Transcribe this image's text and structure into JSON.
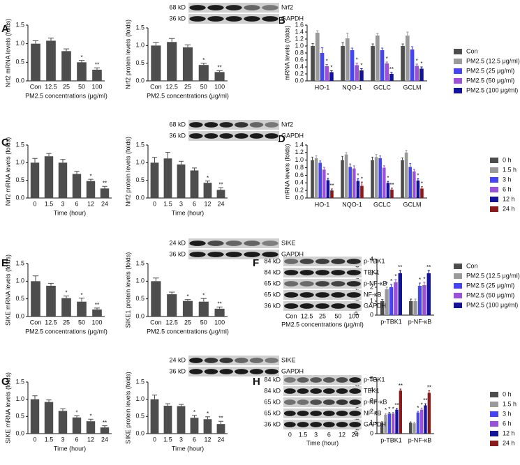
{
  "panel_letters": [
    "A",
    "B",
    "C",
    "D",
    "E",
    "F",
    "G",
    "H"
  ],
  "blots": [
    {
      "kd": [
        "68 kD",
        "36 kD"
      ],
      "names": [
        "Nrf2",
        "GAPDH"
      ]
    },
    {
      "kd": [
        "68 kD",
        "36 kD"
      ],
      "names": [
        "Nrf2",
        "GAPDH"
      ]
    },
    {
      "kd": [
        "24 kD",
        "36 kD"
      ],
      "names": [
        "SIKE",
        "GAPDH"
      ]
    },
    {
      "kd": [
        "84 kD",
        "84 kD",
        "65 kD",
        "65 kD",
        "36 kD"
      ],
      "names": [
        "p-TBK1",
        "TBK1",
        "p-NF-κB",
        "NF-κB",
        "GAPDH"
      ],
      "lanes": [
        "Con",
        "12.5",
        "25",
        "50",
        "100"
      ],
      "xlabel": "PM2.5 concentrations (μg/ml)"
    },
    {
      "kd": [
        "24 kD",
        "36 kD"
      ],
      "names": [
        "SIKE",
        "GAPDH"
      ]
    },
    {
      "kd": [
        "84 kD",
        "84 kD",
        "65 kD",
        "65 kD",
        "36 kD"
      ],
      "names": [
        "p-TBK1",
        "TBK1",
        "p-NF-κB",
        "NF-κB",
        "GAPDH"
      ],
      "lanes": [
        "0",
        "1.5",
        "3",
        "6",
        "12",
        "24"
      ],
      "xlabel": "Time (hour)"
    }
  ],
  "chart_data": [
    {
      "type": "bar",
      "ylabel": "Nrf2 mRNA levels (folds)",
      "xlabel": "PM2.5 concentrations (μg/ml)",
      "color": "#4d4d4d",
      "categories": [
        "Con",
        "12.5",
        "25",
        "50",
        "100"
      ],
      "values": [
        1.0,
        1.08,
        0.8,
        0.5,
        0.3
      ],
      "errors": [
        0.08,
        0.07,
        0.06,
        0.05,
        0.05
      ],
      "annotations": [
        null,
        null,
        null,
        "*",
        "**"
      ],
      "ylim": [
        0,
        1.5
      ],
      "yticks": [
        {
          "value": 0,
          "label": "0.0"
        },
        {
          "value": 0.5,
          "label": "0.5"
        },
        {
          "value": 1,
          "label": "1.0"
        },
        {
          "value": 1.5,
          "label": "1.5"
        }
      ]
    },
    {
      "type": "bar",
      "ylabel": "Nrf2 protein levels (folds)",
      "xlabel": "PM2.5 concentrations (μg/ml)",
      "color": "#4d4d4d",
      "categories": [
        "Con",
        "12.5",
        "25",
        "50",
        "100"
      ],
      "values": [
        1.0,
        1.1,
        0.95,
        0.45,
        0.25
      ],
      "errors": [
        0.09,
        0.1,
        0.07,
        0.05,
        0.04
      ],
      "annotations": [
        null,
        null,
        null,
        "*",
        "**"
      ],
      "ylim": [
        0,
        1.5
      ],
      "yticks": [
        {
          "value": 0,
          "label": "0.0"
        },
        {
          "value": 0.5,
          "label": "0.5"
        },
        {
          "value": 1,
          "label": "1.0"
        },
        {
          "value": 1.5,
          "label": "1.5"
        }
      ]
    },
    {
      "type": "grouped-bar",
      "ylabel": "mRNA levels (folds)",
      "legend": "right",
      "categories": [
        "HO-1",
        "NQO-1",
        "GCLC",
        "GCLM"
      ],
      "series": [
        {
          "name": "Con",
          "color": "#4d4d4d",
          "values": [
            1.0,
            1.0,
            1.0,
            1.0
          ],
          "errors": [
            0.07,
            0.1,
            0.06,
            0.06
          ],
          "annotations": [
            null,
            null,
            null,
            null
          ]
        },
        {
          "name": "PM2.5 (12.5 μg/ml)",
          "color": "#9a9a9a",
          "values": [
            1.38,
            1.22,
            1.3,
            1.3
          ],
          "errors": [
            0.06,
            0.15,
            0.06,
            0.1
          ],
          "annotations": [
            null,
            null,
            null,
            null
          ]
        },
        {
          "name": "PM2.5 (25 μg/ml)",
          "color": "#4646f0",
          "values": [
            0.8,
            0.88,
            0.88,
            0.9
          ],
          "errors": [
            0.15,
            0.06,
            0.06,
            0.08
          ],
          "annotations": [
            null,
            null,
            null,
            null
          ]
        },
        {
          "name": "PM2.5 (50 μg/ml)",
          "color": "#9b52d6",
          "values": [
            0.42,
            0.45,
            0.5,
            0.43
          ],
          "errors": [
            0.05,
            0.06,
            0.04,
            0.05
          ],
          "annotations": [
            "*",
            "*",
            "*",
            "*"
          ]
        },
        {
          "name": "PM2.5 (100 μg/ml)",
          "color": "#14149a",
          "values": [
            0.25,
            0.3,
            0.2,
            0.35
          ],
          "errors": [
            0.04,
            0.05,
            0.04,
            0.05
          ],
          "annotations": [
            "*",
            "*",
            "**",
            "*"
          ]
        }
      ],
      "ylim": [
        0,
        1.6
      ],
      "yticks": [
        {
          "value": 0,
          "label": "0.0"
        },
        {
          "value": 0.2,
          "label": "0.2"
        },
        {
          "value": 0.4,
          "label": "0.4"
        },
        {
          "value": 0.6,
          "label": "0.6"
        },
        {
          "value": 0.8,
          "label": "0.8"
        },
        {
          "value": 1,
          "label": "1.0"
        },
        {
          "value": 1.2,
          "label": "1.2"
        },
        {
          "value": 1.4,
          "label": "1.4"
        },
        {
          "value": 1.6,
          "label": "1.6"
        }
      ]
    },
    {
      "type": "bar",
      "ylabel": "Nrf2 mRNA levels (folds)",
      "xlabel": "Time (hour)",
      "color": "#4d4d4d",
      "categories": [
        "0",
        "1.5",
        "3",
        "6",
        "12",
        "24"
      ],
      "values": [
        1.0,
        1.18,
        1.0,
        0.68,
        0.48,
        0.27
      ],
      "errors": [
        0.12,
        0.08,
        0.09,
        0.08,
        0.05,
        0.06
      ],
      "annotations": [
        null,
        null,
        null,
        null,
        "*",
        "**"
      ],
      "ylim": [
        0,
        1.5
      ],
      "yticks": [
        {
          "value": 0,
          "label": "0.0"
        },
        {
          "value": 0.5,
          "label": "0.5"
        },
        {
          "value": 1,
          "label": "1.0"
        },
        {
          "value": 1.5,
          "label": "1.5"
        }
      ]
    },
    {
      "type": "bar",
      "ylabel": "Nrf2 protein levels (folds)",
      "xlabel": "Time (hour)",
      "color": "#4d4d4d",
      "categories": [
        "0",
        "1.5",
        "3",
        "6",
        "12",
        "24"
      ],
      "values": [
        1.0,
        1.12,
        0.95,
        0.78,
        0.43,
        0.23
      ],
      "errors": [
        0.15,
        0.17,
        0.09,
        0.07,
        0.05,
        0.06
      ],
      "annotations": [
        null,
        null,
        null,
        null,
        "*",
        "**"
      ],
      "ylim": [
        0,
        1.5
      ],
      "yticks": [
        {
          "value": 0,
          "label": "0.0"
        },
        {
          "value": 0.5,
          "label": "0.5"
        },
        {
          "value": 1,
          "label": "1.0"
        },
        {
          "value": 1.5,
          "label": "1.5"
        }
      ]
    },
    {
      "type": "grouped-bar",
      "ylabel": "mRNA levels (folds)",
      "legend": "right",
      "categories": [
        "HO-1",
        "NQO-1",
        "GCLC",
        "GCLM"
      ],
      "series": [
        {
          "name": "0 h",
          "color": "#4d4d4d",
          "values": [
            1.0,
            1.0,
            1.0,
            1.0
          ],
          "errors": [
            0.08,
            0.1,
            0.08,
            0.06
          ],
          "annotations": [
            null,
            null,
            null,
            null
          ]
        },
        {
          "name": "1.5 h",
          "color": "#9a9a9a",
          "values": [
            1.05,
            1.15,
            1.08,
            1.2
          ],
          "errors": [
            0.07,
            0.05,
            0.07,
            0.06
          ],
          "annotations": [
            null,
            null,
            null,
            null
          ]
        },
        {
          "name": "3 h",
          "color": "#4646f0",
          "values": [
            0.93,
            0.82,
            1.05,
            0.82
          ],
          "errors": [
            0.05,
            0.08,
            0.06,
            0.09
          ],
          "annotations": [
            null,
            null,
            null,
            null
          ]
        },
        {
          "name": "6 h",
          "color": "#9b52d6",
          "values": [
            0.75,
            0.78,
            0.8,
            0.7
          ],
          "errors": [
            0.06,
            0.07,
            0.05,
            0.06
          ],
          "annotations": [
            null,
            null,
            null,
            null
          ]
        },
        {
          "name": "12 h",
          "color": "#14149a",
          "values": [
            0.47,
            0.45,
            0.4,
            0.46
          ],
          "errors": [
            0.05,
            0.06,
            0.04,
            0.05
          ],
          "annotations": [
            "*",
            "*",
            "*",
            "*"
          ]
        },
        {
          "name": "24 h",
          "color": "#8b1a1a",
          "values": [
            0.2,
            0.32,
            0.22,
            0.25
          ],
          "errors": [
            0.04,
            0.1,
            0.04,
            0.05
          ],
          "annotations": [
            "**",
            "*",
            "**",
            "*"
          ]
        }
      ],
      "ylim": [
        0,
        1.4
      ],
      "yticks": [
        {
          "value": 0,
          "label": "0.0"
        },
        {
          "value": 0.2,
          "label": "0.2"
        },
        {
          "value": 0.4,
          "label": "0.4"
        },
        {
          "value": 0.6,
          "label": "0.6"
        },
        {
          "value": 0.8,
          "label": "0.8"
        },
        {
          "value": 1,
          "label": "1.0"
        },
        {
          "value": 1.2,
          "label": "1.2"
        },
        {
          "value": 1.4,
          "label": "1.4"
        }
      ]
    },
    {
      "type": "bar",
      "ylabel": "SIKE mRNA levels (folds)",
      "xlabel": "PM2.5 concentrations (μg/ml)",
      "color": "#4d4d4d",
      "categories": [
        "Con",
        "12.5",
        "25",
        "50",
        "100"
      ],
      "values": [
        1.0,
        0.87,
        0.52,
        0.42,
        0.2
      ],
      "errors": [
        0.15,
        0.07,
        0.06,
        0.1,
        0.04
      ],
      "annotations": [
        null,
        null,
        "*",
        "*",
        "**"
      ],
      "ylim": [
        0,
        1.5
      ],
      "yticks": [
        {
          "value": 0,
          "label": "0.0"
        },
        {
          "value": 0.5,
          "label": "0.5"
        },
        {
          "value": 1,
          "label": "1.0"
        },
        {
          "value": 1.5,
          "label": "1.5"
        }
      ]
    },
    {
      "type": "bar",
      "ylabel": "SIKE1 protein levels (folds)",
      "xlabel": "PM2.5 concentrations (μg/ml)",
      "color": "#4d4d4d",
      "categories": [
        "Con",
        "12.5",
        "25",
        "50",
        "100"
      ],
      "values": [
        1.0,
        0.63,
        0.44,
        0.42,
        0.22
      ],
      "errors": [
        0.09,
        0.06,
        0.04,
        0.09,
        0.05
      ],
      "annotations": [
        null,
        null,
        "*",
        "*",
        "**"
      ],
      "ylim": [
        0,
        1.5
      ],
      "yticks": [
        {
          "value": 0,
          "label": "0.0"
        },
        {
          "value": 0.5,
          "label": "0.5"
        },
        {
          "value": 1,
          "label": "1.0"
        },
        {
          "value": 1.5,
          "label": "1.5"
        }
      ]
    },
    {
      "type": "grouped-bar",
      "ylabel": "Protein levels (folds)",
      "legend": "right",
      "categories": [
        "p-TBK1",
        "p-NF-κB"
      ],
      "series": [
        {
          "name": "Con",
          "color": "#4d4d4d",
          "values": [
            1.0,
            1.0
          ],
          "errors": [
            0.12,
            0.15
          ],
          "annotations": [
            null,
            null
          ]
        },
        {
          "name": "PM2.5 (12.5 μg/ml)",
          "color": "#9a9a9a",
          "values": [
            1.85,
            1.0
          ],
          "errors": [
            0.15,
            0.15
          ],
          "annotations": [
            "*",
            null
          ]
        },
        {
          "name": "PM2.5 (25 μg/ml)",
          "color": "#4646f0",
          "values": [
            2.0,
            2.1
          ],
          "errors": [
            0.2,
            0.2
          ],
          "annotations": [
            "*",
            "*"
          ]
        },
        {
          "name": "PM2.5 (50 μg/ml)",
          "color": "#9b52d6",
          "values": [
            2.35,
            2.15
          ],
          "errors": [
            0.2,
            0.2
          ],
          "annotations": [
            "*",
            "*"
          ]
        },
        {
          "name": "PM2.5 (100 μg/ml)",
          "color": "#14149a",
          "values": [
            3.0,
            3.0
          ],
          "errors": [
            0.2,
            0.2
          ],
          "annotations": [
            "**",
            "**"
          ]
        }
      ],
      "ylim": [
        0,
        4
      ],
      "yticks": [
        0,
        1,
        2,
        3,
        4
      ]
    },
    {
      "type": "bar",
      "ylabel": "SIKE mRNA levels (folds)",
      "xlabel": "Time (hour)",
      "color": "#4d4d4d",
      "categories": [
        "0",
        "1.5",
        "3",
        "6",
        "12",
        "24"
      ],
      "values": [
        1.0,
        0.92,
        0.66,
        0.47,
        0.36,
        0.18
      ],
      "errors": [
        0.1,
        0.06,
        0.06,
        0.05,
        0.06,
        0.05
      ],
      "annotations": [
        null,
        null,
        null,
        "*",
        "*",
        "**"
      ],
      "ylim": [
        0,
        1.5
      ],
      "yticks": [
        {
          "value": 0,
          "label": "0.0"
        },
        {
          "value": 0.5,
          "label": "0.5"
        },
        {
          "value": 1,
          "label": "1.0"
        },
        {
          "value": 1.5,
          "label": "1.5"
        }
      ]
    },
    {
      "type": "bar",
      "ylabel": "SIKE protein levels (folds)",
      "xlabel": "Time (hour)",
      "color": "#4d4d4d",
      "categories": [
        "0",
        "1.5",
        "3",
        "6",
        "12",
        "24"
      ],
      "values": [
        1.0,
        0.81,
        0.8,
        0.46,
        0.42,
        0.28
      ],
      "errors": [
        0.12,
        0.06,
        0.05,
        0.07,
        0.07,
        0.08
      ],
      "annotations": [
        null,
        null,
        null,
        "*",
        "*",
        "**"
      ],
      "ylim": [
        0,
        1.5
      ],
      "yticks": [
        {
          "value": 0,
          "label": "0.0"
        },
        {
          "value": 0.5,
          "label": "0.5"
        },
        {
          "value": 1,
          "label": "1.0"
        },
        {
          "value": 1.5,
          "label": "1.5"
        }
      ]
    },
    {
      "type": "grouped-bar",
      "ylabel": "Protein levels (folds)",
      "legend": "right",
      "categories": [
        "p-TBK1",
        "p-NF-κB"
      ],
      "series": [
        {
          "name": "0 h",
          "color": "#4d4d4d",
          "values": [
            1.0,
            1.0
          ],
          "errors": [
            0.1,
            0.08
          ],
          "annotations": [
            null,
            null
          ]
        },
        {
          "name": "1.5 h",
          "color": "#9a9a9a",
          "values": [
            1.75,
            0.95
          ],
          "errors": [
            0.1,
            0.1
          ],
          "annotations": [
            "*",
            null
          ]
        },
        {
          "name": "3 h",
          "color": "#4646f0",
          "values": [
            1.85,
            1.95
          ],
          "errors": [
            0.1,
            0.1
          ],
          "annotations": [
            "*",
            "*"
          ]
        },
        {
          "name": "6 h",
          "color": "#9b52d6",
          "values": [
            1.85,
            2.2
          ],
          "errors": [
            0.1,
            0.15
          ],
          "annotations": [
            "*",
            "*"
          ]
        },
        {
          "name": "12 h",
          "color": "#14149a",
          "values": [
            2.2,
            2.6
          ],
          "errors": [
            0.12,
            0.15
          ],
          "annotations": [
            "**",
            "**"
          ]
        },
        {
          "name": "24 h",
          "color": "#8b1a1a",
          "values": [
            3.95,
            3.75
          ],
          "errors": [
            0.15,
            0.2
          ],
          "annotations": [
            "**",
            "**"
          ]
        }
      ],
      "ylim": [
        0,
        5
      ],
      "yticks": [
        0,
        1,
        2,
        3,
        4,
        5
      ]
    }
  ]
}
